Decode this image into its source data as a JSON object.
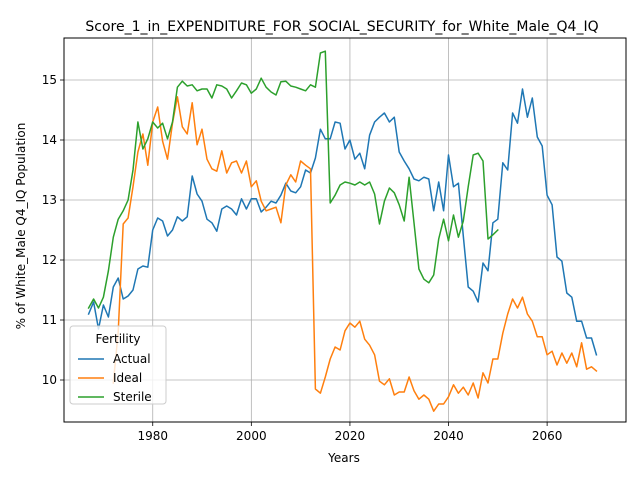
{
  "chart_data": {
    "type": "line",
    "title": "Score_1_in_EXPENDITURE_FOR_SOCIAL_SECURITY_for_White_Male_Q4_IQ",
    "xlabel": "Years",
    "ylabel": "% of White_Male Q4_IQ Population",
    "xlim": [
      1962,
      2076
    ],
    "ylim": [
      9.3,
      15.7
    ],
    "x_ticks": [
      1980,
      2000,
      2020,
      2040,
      2060
    ],
    "y_ticks": [
      10,
      11,
      12,
      13,
      14,
      15
    ],
    "x_tick_labels": [
      "1980",
      "2000",
      "2020",
      "2040",
      "2060"
    ],
    "y_tick_labels": [
      "10",
      "11",
      "12",
      "13",
      "14",
      "15"
    ],
    "grid": true,
    "legend": {
      "title": "Fertility",
      "placement": "lower-left"
    },
    "series": [
      {
        "name": "Actual",
        "color": "#1f77b4",
        "x": [
          1967,
          1968,
          1969,
          1970,
          1971,
          1972,
          1973,
          1974,
          1975,
          1976,
          1977,
          1978,
          1979,
          1980,
          1981,
          1982,
          1983,
          1984,
          1985,
          1986,
          1987,
          1988,
          1989,
          1990,
          1991,
          1992,
          1993,
          1994,
          1995,
          1996,
          1997,
          1998,
          1999,
          2000,
          2001,
          2002,
          2003,
          2004,
          2005,
          2006,
          2007,
          2008,
          2009,
          2010,
          2011,
          2012,
          2013,
          2014,
          2015,
          2016,
          2017,
          2018,
          2019,
          2020,
          2021,
          2022,
          2023,
          2024,
          2025,
          2026,
          2027,
          2028,
          2029,
          2030,
          2031,
          2032,
          2033,
          2034,
          2035,
          2036,
          2037,
          2038,
          2039,
          2040,
          2041,
          2042,
          2043,
          2044,
          2045,
          2046,
          2047,
          2048,
          2049,
          2050,
          2051,
          2052,
          2053,
          2054,
          2055,
          2056,
          2057,
          2058,
          2059,
          2060,
          2061,
          2062,
          2063,
          2064,
          2065,
          2066,
          2067,
          2068,
          2069,
          2070
        ],
        "values": [
          11.1,
          11.3,
          10.85,
          11.25,
          11.05,
          11.55,
          11.7,
          11.35,
          11.4,
          11.5,
          11.85,
          11.9,
          11.88,
          12.5,
          12.7,
          12.65,
          12.4,
          12.5,
          12.72,
          12.65,
          12.72,
          13.4,
          13.1,
          12.98,
          12.68,
          12.62,
          12.48,
          12.85,
          12.9,
          12.85,
          12.75,
          13.02,
          12.85,
          13.02,
          13.02,
          12.8,
          12.88,
          12.98,
          12.95,
          13.08,
          13.28,
          13.15,
          13.12,
          13.22,
          13.5,
          13.45,
          13.7,
          14.18,
          14.02,
          14.02,
          14.3,
          14.28,
          13.85,
          14.0,
          13.68,
          13.78,
          13.52,
          14.08,
          14.3,
          14.38,
          14.45,
          14.3,
          14.38,
          13.8,
          13.65,
          13.52,
          13.35,
          13.32,
          13.38,
          13.35,
          12.82,
          13.3,
          12.82,
          13.75,
          13.22,
          13.28,
          12.4,
          11.55,
          11.48,
          11.3,
          11.95,
          11.82,
          12.62,
          12.68,
          13.62,
          13.5,
          14.45,
          14.28,
          14.85,
          14.38,
          14.7,
          14.05,
          13.9,
          13.08,
          12.92,
          12.05,
          11.98,
          11.45,
          11.38,
          10.98,
          10.98,
          10.7,
          10.7,
          10.42
        ]
      },
      {
        "name": "Ideal",
        "color": "#ff7f0e",
        "x": [
          1972,
          1973,
          1974,
          1975,
          1976,
          1977,
          1978,
          1979,
          1980,
          1981,
          1982,
          1983,
          1984,
          1985,
          1986,
          1987,
          1988,
          1989,
          1990,
          1991,
          1992,
          1993,
          1994,
          1995,
          1996,
          1997,
          1998,
          1999,
          2000,
          2001,
          2002,
          2003,
          2004,
          2005,
          2006,
          2007,
          2008,
          2009,
          2010,
          2011,
          2012,
          2013,
          2014,
          2015,
          2016,
          2017,
          2018,
          2019,
          2020,
          2021,
          2022,
          2023,
          2024,
          2025,
          2026,
          2027,
          2028,
          2029,
          2030,
          2031,
          2032,
          2033,
          2034,
          2035,
          2036,
          2037,
          2038,
          2039,
          2040,
          2041,
          2042,
          2043,
          2044,
          2045,
          2046,
          2047,
          2048,
          2049,
          2050,
          2051,
          2052,
          2053,
          2054,
          2055,
          2056,
          2057,
          2058,
          2059,
          2060,
          2061,
          2062,
          2063,
          2064,
          2065,
          2066,
          2067,
          2068,
          2069,
          2070
        ],
        "values": [
          9.95,
          10.8,
          12.6,
          12.7,
          13.22,
          13.8,
          14.1,
          13.58,
          14.3,
          14.55,
          13.98,
          13.68,
          14.28,
          14.72,
          14.22,
          14.1,
          14.62,
          13.92,
          14.18,
          13.68,
          13.52,
          13.48,
          13.82,
          13.45,
          13.62,
          13.65,
          13.45,
          13.65,
          13.22,
          13.32,
          12.98,
          12.82,
          12.85,
          12.88,
          12.62,
          13.25,
          13.42,
          13.3,
          13.65,
          13.58,
          13.52,
          9.85,
          9.78,
          10.05,
          10.35,
          10.55,
          10.5,
          10.82,
          10.95,
          10.88,
          10.98,
          10.68,
          10.58,
          10.42,
          9.98,
          9.92,
          10.02,
          9.75,
          9.8,
          9.8,
          10.05,
          9.82,
          9.68,
          9.75,
          9.68,
          9.48,
          9.6,
          9.6,
          9.72,
          9.92,
          9.78,
          9.88,
          9.75,
          9.95,
          9.7,
          10.12,
          9.95,
          10.35,
          10.35,
          10.78,
          11.1,
          11.35,
          11.2,
          11.38,
          11.1,
          10.98,
          10.72,
          10.72,
          10.42,
          10.48,
          10.25,
          10.45,
          10.28,
          10.45,
          10.22,
          10.62,
          10.18,
          10.22,
          10.15
        ]
      },
      {
        "name": "Sterile",
        "color": "#2ca02c",
        "x": [
          1967,
          1968,
          1969,
          1970,
          1971,
          1972,
          1973,
          1974,
          1975,
          1976,
          1977,
          1978,
          1979,
          1980,
          1981,
          1982,
          1983,
          1984,
          1985,
          1986,
          1987,
          1988,
          1989,
          1990,
          1991,
          1992,
          1993,
          1994,
          1995,
          1996,
          1997,
          1998,
          1999,
          2000,
          2001,
          2002,
          2003,
          2004,
          2005,
          2006,
          2007,
          2008,
          2009,
          2010,
          2011,
          2012,
          2013,
          2014,
          2015,
          2016,
          2017,
          2018,
          2019,
          2020,
          2021,
          2022,
          2023,
          2024,
          2025,
          2026,
          2027,
          2028,
          2029,
          2030,
          2031,
          2032,
          2033,
          2034,
          2035,
          2036,
          2037,
          2038,
          2039,
          2040,
          2041,
          2042,
          2043,
          2044,
          2045,
          2046,
          2047,
          2048,
          2049,
          2050
        ],
        "values": [
          11.2,
          11.35,
          11.2,
          11.38,
          11.82,
          12.38,
          12.68,
          12.82,
          13.0,
          13.5,
          14.3,
          13.85,
          14.02,
          14.3,
          14.2,
          14.28,
          14.02,
          14.3,
          14.88,
          14.98,
          14.9,
          14.92,
          14.82,
          14.85,
          14.85,
          14.7,
          14.92,
          14.9,
          14.85,
          14.7,
          14.82,
          14.95,
          14.92,
          14.78,
          14.85,
          15.03,
          14.88,
          14.8,
          14.75,
          14.97,
          14.98,
          14.9,
          14.88,
          14.85,
          14.82,
          14.92,
          14.88,
          15.45,
          15.48,
          12.95,
          13.08,
          13.25,
          13.3,
          13.28,
          13.25,
          13.3,
          13.25,
          13.3,
          13.1,
          12.6,
          12.98,
          13.2,
          13.12,
          12.92,
          12.65,
          13.38,
          12.62,
          11.85,
          11.68,
          11.62,
          11.75,
          12.35,
          12.68,
          12.32,
          12.75,
          12.38,
          12.65,
          13.22,
          13.75,
          13.78,
          13.65,
          12.35,
          12.42,
          12.5
        ]
      }
    ]
  }
}
